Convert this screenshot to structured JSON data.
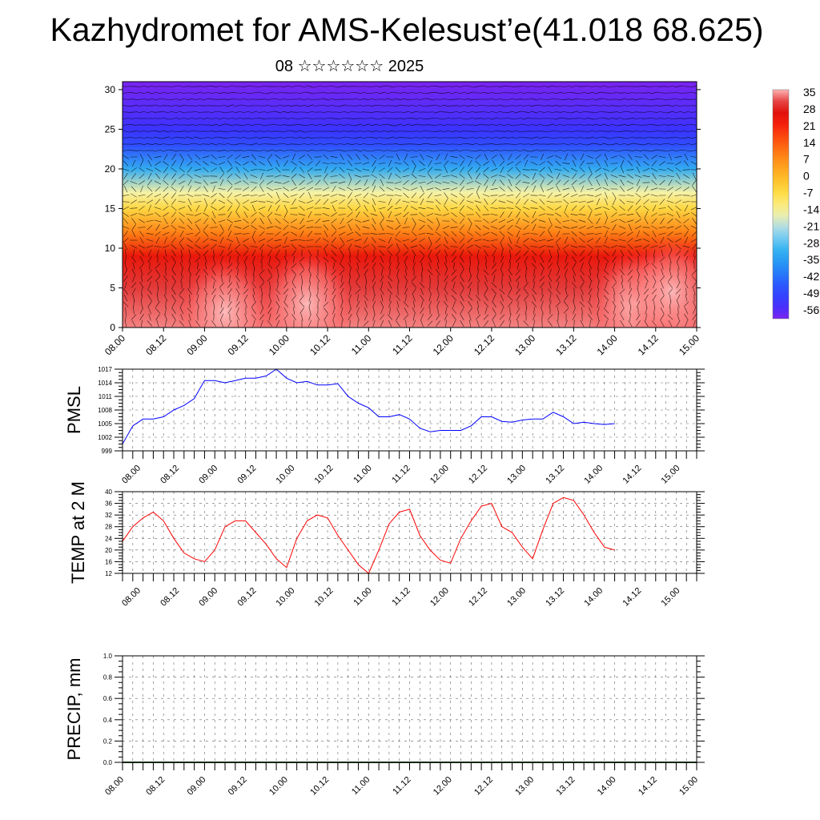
{
  "title": "Kazhydromet for AMS-Kelesust’e(41.018 68.625)",
  "subtitle": "08 ☆☆☆☆☆☆ 2025",
  "colors": {
    "pmsl_line": "#0000ff",
    "temp_line": "#ff0000",
    "precip_line": "#1b4d1b"
  },
  "chart_data": [
    {
      "type": "heatmap",
      "name": "temperature-wind-cross-section",
      "x_tick_labels": [
        "08.00",
        "08.12",
        "09.00",
        "09.12",
        "10.00",
        "10.12",
        "11.00",
        "11.12",
        "12.00",
        "12.12",
        "13.00",
        "13.12",
        "14.00",
        "14.12",
        "15.00"
      ],
      "y_ticks": [
        0,
        5,
        10,
        15,
        20,
        25,
        30
      ],
      "ylim": [
        0,
        31
      ],
      "colorbar_labels": [
        "35",
        "28",
        "21",
        "14",
        "7",
        "0",
        "-7",
        "-14",
        "-21",
        "-28",
        "-35",
        "-42",
        "-49",
        "-56"
      ],
      "color_scale": {
        "min": -56,
        "max": 35
      },
      "level_temperature": [
        {
          "level": 0,
          "value": 33
        },
        {
          "level": 5,
          "value": 30
        },
        {
          "level": 9,
          "value": 24
        },
        {
          "level": 12,
          "value": 9
        },
        {
          "level": 15,
          "value": -5
        },
        {
          "level": 17,
          "value": -14
        },
        {
          "level": 20,
          "value": -30
        },
        {
          "level": 23,
          "value": -45
        },
        {
          "level": 25,
          "value": -50
        },
        {
          "level": 28,
          "value": -53
        },
        {
          "level": 31,
          "value": -56
        }
      ],
      "warm_spots": [
        {
          "x": 4.5,
          "y": 3,
          "value": 35
        },
        {
          "x": 12.5,
          "y": 3,
          "value": 36
        },
        {
          "x": 13.4,
          "y": 4.5,
          "value": 36
        },
        {
          "x": 2.5,
          "y": 2,
          "value": 34
        }
      ],
      "vector_field": "wind direction arrows on a regular grid"
    },
    {
      "type": "line",
      "name": "PMSL",
      "ylabel": "PMSL",
      "y_ticks": [
        999,
        1002,
        1005,
        1008,
        1011,
        1014,
        1017
      ],
      "ylim": [
        999,
        1017
      ],
      "x_tick_labels": [
        "08.00",
        "08.12",
        "09.00",
        "09.12",
        "10.00",
        "10.12",
        "11.00",
        "11.12",
        "12.00",
        "12.12",
        "13.00",
        "13.12",
        "14.00",
        "14.12",
        "15.00"
      ],
      "x_step": 0.125,
      "values": [
        1000.5,
        1004.5,
        1006.0,
        1006.0,
        1006.5,
        1008.0,
        1009.0,
        1010.5,
        1014.5,
        1014.5,
        1014.0,
        1014.5,
        1015.0,
        1015.0,
        1015.5,
        1017.0,
        1015.0,
        1014.0,
        1014.3,
        1013.5,
        1013.5,
        1013.8,
        1011.0,
        1009.5,
        1008.5,
        1006.5,
        1006.5,
        1007.0,
        1006.0,
        1004.0,
        1003.2,
        1003.5,
        1003.5,
        1003.5,
        1004.5,
        1006.5,
        1006.5,
        1005.5,
        1005.3,
        1005.8,
        1006.0,
        1006.0,
        1007.5,
        1006.5,
        1005.0,
        1005.3,
        1005.0,
        1004.8,
        1005.0
      ]
    },
    {
      "type": "line",
      "name": "TEMP at 2 M",
      "ylabel": "TEMP at 2 M",
      "y_ticks": [
        12,
        16,
        20,
        24,
        28,
        32,
        36,
        40
      ],
      "ylim": [
        12,
        40
      ],
      "x_tick_labels": [
        "08.00",
        "08.12",
        "09.00",
        "09.12",
        "10.00",
        "10.12",
        "11.00",
        "11.12",
        "12.00",
        "12.12",
        "13.00",
        "13.12",
        "14.00",
        "14.12",
        "15.00"
      ],
      "x_step": 0.125,
      "values": [
        23.0,
        28.0,
        31.0,
        33.0,
        30.0,
        24.0,
        19.0,
        17.0,
        16.0,
        20.0,
        28.0,
        30.0,
        30.0,
        26.0,
        22.0,
        17.0,
        14.0,
        24.0,
        30.0,
        32.0,
        31.0,
        25.0,
        20.0,
        15.0,
        12.0,
        20.0,
        29.0,
        33.0,
        34.0,
        25.0,
        20.0,
        16.5,
        15.5,
        24.0,
        30.0,
        35.0,
        36.0,
        28.0,
        26.0,
        21.0,
        17.0,
        27.0,
        36.0,
        38.0,
        37.0,
        32.0,
        26.0,
        21.0,
        20.0
      ]
    },
    {
      "type": "line",
      "name": "PRECIP, mm",
      "ylabel": "PRECIP, mm",
      "y_ticks": [
        0.0,
        0.2,
        0.4,
        0.6,
        0.8,
        1.0
      ],
      "y_tick_labels": [
        "0.0",
        "0.2",
        "0.4",
        "0.6",
        "0.8",
        "1.0"
      ],
      "ylim": [
        0,
        1
      ],
      "x_tick_labels": [
        "08.00",
        "08.12",
        "09.00",
        "09.12",
        "10.00",
        "10.12",
        "11.00",
        "11.12",
        "12.00",
        "12.12",
        "13.00",
        "13.12",
        "14.00",
        "14.12",
        "15.00"
      ],
      "x_step": 0.125,
      "values": [
        0,
        0,
        0,
        0,
        0,
        0,
        0,
        0,
        0,
        0,
        0,
        0,
        0,
        0,
        0,
        0,
        0,
        0,
        0,
        0,
        0,
        0,
        0,
        0,
        0,
        0,
        0,
        0,
        0,
        0,
        0,
        0,
        0,
        0,
        0,
        0,
        0,
        0,
        0,
        0,
        0,
        0,
        0,
        0,
        0,
        0,
        0,
        0,
        0,
        0,
        0,
        0,
        0,
        0,
        0,
        0,
        0
      ]
    }
  ]
}
